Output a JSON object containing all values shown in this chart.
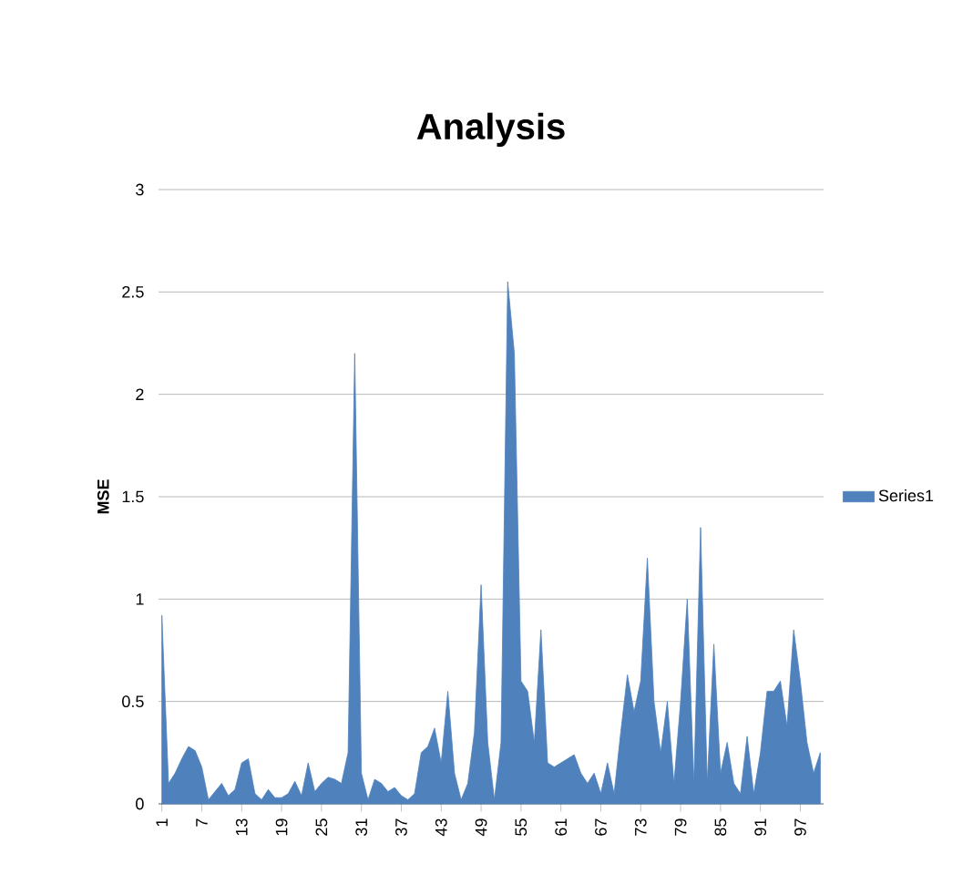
{
  "chart_data": {
    "type": "area",
    "title": "Analysis",
    "ylabel": "MSE",
    "categories": [
      "1",
      null,
      null,
      null,
      null,
      null,
      "7",
      null,
      null,
      null,
      null,
      null,
      "13",
      null,
      null,
      null,
      null,
      null,
      "19",
      null,
      null,
      null,
      null,
      null,
      "25",
      null,
      null,
      null,
      null,
      null,
      "31",
      null,
      null,
      null,
      null,
      null,
      "37",
      null,
      null,
      null,
      null,
      null,
      "43",
      null,
      null,
      null,
      null,
      null,
      "49",
      null,
      null,
      null,
      null,
      null,
      "55",
      null,
      null,
      null,
      null,
      null,
      "61",
      null,
      null,
      null,
      null,
      null,
      "67",
      null,
      null,
      null,
      null,
      null,
      "73",
      null,
      null,
      null,
      null,
      null,
      "79",
      null,
      null,
      null,
      null,
      null,
      "85",
      null,
      null,
      null,
      null,
      null,
      "91",
      null,
      null,
      null,
      null,
      null,
      "97",
      null,
      null,
      null
    ],
    "series": [
      {
        "name": "Series1",
        "color": "#4f81bd",
        "values": [
          0.92,
          0.1,
          0.15,
          0.22,
          0.28,
          0.26,
          0.18,
          0.02,
          0.06,
          0.1,
          0.04,
          0.07,
          0.2,
          0.22,
          0.05,
          0.02,
          0.07,
          0.03,
          0.03,
          0.05,
          0.11,
          0.04,
          0.2,
          0.06,
          0.1,
          0.13,
          0.12,
          0.1,
          0.25,
          2.2,
          0.15,
          0.02,
          0.12,
          0.1,
          0.06,
          0.08,
          0.04,
          0.02,
          0.05,
          0.25,
          0.28,
          0.37,
          0.2,
          0.55,
          0.15,
          0.02,
          0.1,
          0.35,
          1.07,
          0.3,
          0.02,
          0.3,
          2.55,
          2.2,
          0.6,
          0.55,
          0.3,
          0.85,
          0.2,
          0.18,
          0.2,
          0.22,
          0.24,
          0.15,
          0.1,
          0.15,
          0.05,
          0.2,
          0.05,
          0.35,
          0.63,
          0.45,
          0.6,
          1.2,
          0.5,
          0.25,
          0.5,
          0.1,
          0.5,
          1.0,
          0.1,
          1.35,
          0.1,
          0.78,
          0.15,
          0.3,
          0.1,
          0.05,
          0.33,
          0.05,
          0.25,
          0.55,
          0.55,
          0.6,
          0.38,
          0.85,
          0.6,
          0.3,
          0.15,
          0.25
        ]
      }
    ],
    "ylim": [
      0,
      3
    ],
    "yticks": [
      0,
      0.5,
      1,
      1.5,
      2,
      2.5,
      3
    ],
    "grid": "y",
    "legend": "right"
  }
}
